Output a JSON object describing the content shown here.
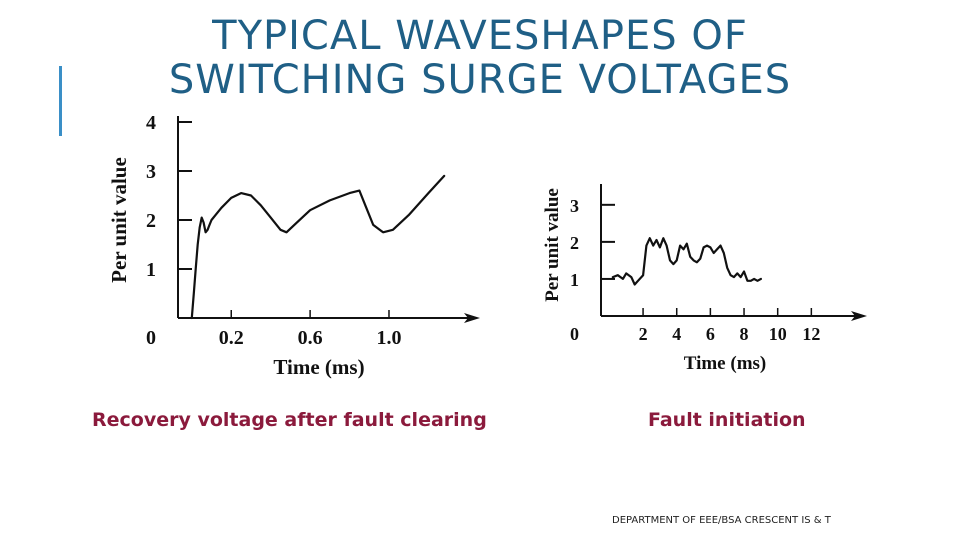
{
  "slide": {
    "title_line1": "TYPICAL WAVESHAPES OF",
    "title_line2": "SWITCHING SURGE VOLTAGES",
    "caption_left": "Recovery voltage after fault clearing",
    "caption_right": "Fault initiation",
    "footer": "DEPARTMENT OF EEE/BSA CRESCENT IS & T",
    "colors": {
      "title": "#1f5f86",
      "accent_bar": "#3a8fc7",
      "caption": "#8b1a3c",
      "ink": "#111111"
    }
  },
  "chart_data": [
    {
      "type": "line",
      "xlabel": "Time (ms)",
      "ylabel": "Per unit value",
      "x_ticks": [
        "0.2",
        "0.6",
        "1.0"
      ],
      "x_tick_values": [
        0.2,
        0.6,
        1.0
      ],
      "y_ticks": [
        "1",
        "2",
        "3",
        "4"
      ],
      "y_tick_values": [
        1,
        2,
        3,
        4
      ],
      "origin_label": "0",
      "xlim": [
        -0.07,
        1.35
      ],
      "ylim": [
        0,
        4
      ],
      "series": [
        {
          "x": [
            0.0,
            0.01,
            0.02,
            0.03,
            0.04,
            0.05,
            0.06,
            0.07,
            0.08,
            0.09,
            0.1,
            0.12,
            0.15,
            0.2,
            0.25,
            0.3,
            0.35,
            0.4,
            0.45,
            0.48,
            0.52,
            0.6,
            0.7,
            0.8,
            0.85,
            0.88,
            0.92,
            0.97,
            1.02,
            1.1,
            1.2,
            1.28
          ],
          "y": [
            0.0,
            0.5,
            1.0,
            1.5,
            1.85,
            2.05,
            1.95,
            1.75,
            1.8,
            1.9,
            2.0,
            2.1,
            2.25,
            2.45,
            2.55,
            2.5,
            2.3,
            2.05,
            1.8,
            1.75,
            1.9,
            2.2,
            2.4,
            2.55,
            2.6,
            2.3,
            1.9,
            1.75,
            1.8,
            2.1,
            2.55,
            2.9
          ]
        }
      ]
    },
    {
      "type": "line",
      "xlabel": "Time (ms)",
      "ylabel": "Per unit value",
      "x_ticks": [
        "2",
        "4",
        "6",
        "8",
        "10",
        "12"
      ],
      "x_tick_values": [
        2,
        4,
        6,
        8,
        10,
        12
      ],
      "y_ticks": [
        "1",
        "2",
        "3"
      ],
      "y_tick_values": [
        1,
        2,
        3
      ],
      "origin_label": "0",
      "xlim": [
        -0.5,
        14
      ],
      "ylim": [
        0,
        3.4
      ],
      "series": [
        {
          "x": [
            0.2,
            0.5,
            0.8,
            1.0,
            1.3,
            1.5,
            1.7,
            2.0,
            2.2,
            2.4,
            2.6,
            2.8,
            3.0,
            3.2,
            3.4,
            3.6,
            3.8,
            4.0,
            4.2,
            4.4,
            4.6,
            4.8,
            5.0,
            5.2,
            5.4,
            5.6,
            5.8,
            6.0,
            6.2,
            6.4,
            6.6,
            6.8,
            7.0,
            7.2,
            7.4,
            7.6,
            7.8,
            8.0,
            8.2,
            8.4,
            8.6,
            8.8,
            9.0
          ],
          "y": [
            1.05,
            1.1,
            1.0,
            1.15,
            1.05,
            0.85,
            0.95,
            1.1,
            1.9,
            2.1,
            1.9,
            2.05,
            1.85,
            2.1,
            1.9,
            1.5,
            1.4,
            1.5,
            1.9,
            1.8,
            1.95,
            1.6,
            1.5,
            1.45,
            1.55,
            1.85,
            1.9,
            1.85,
            1.7,
            1.8,
            1.9,
            1.7,
            1.3,
            1.1,
            1.05,
            1.15,
            1.05,
            1.2,
            0.95,
            0.95,
            1.0,
            0.95,
            1.0
          ]
        }
      ]
    }
  ]
}
